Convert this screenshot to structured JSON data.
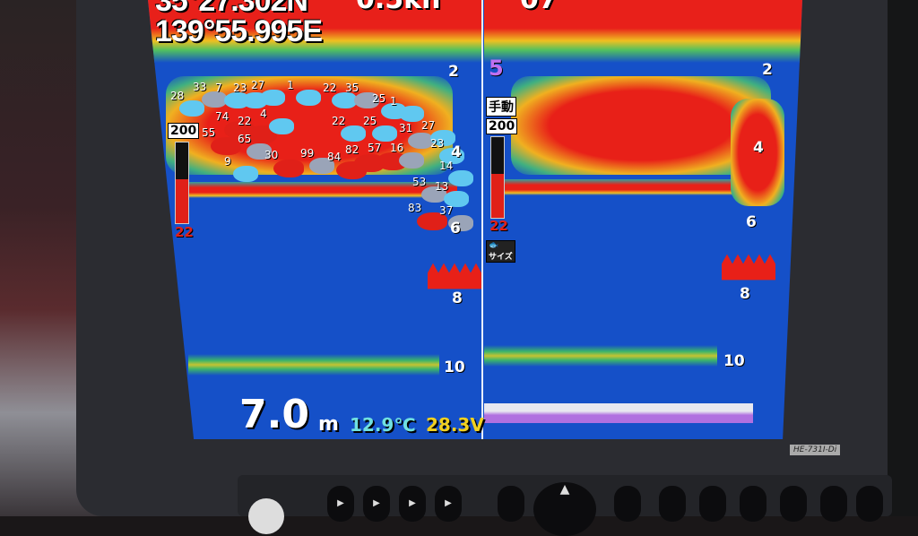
{
  "header": {
    "latitude": "35°27.302N",
    "longitude": "139°55.995E",
    "speed": "0.5kn",
    "right_partial": "07"
  },
  "left_panel": {
    "depth_marks": [
      "2",
      "4",
      "6",
      "8",
      "10"
    ],
    "gain_label": "200",
    "gain_value": "22",
    "gain_level_fraction": 0.55,
    "fish": [
      {
        "size": "28",
        "type": "cyan"
      },
      {
        "size": "33",
        "type": "grey"
      },
      {
        "size": "7",
        "type": "cyan"
      },
      {
        "size": "23",
        "type": "cyan"
      },
      {
        "size": "27",
        "type": "cyan"
      },
      {
        "size": "1",
        "type": "cyan"
      },
      {
        "size": "22",
        "type": "cyan"
      },
      {
        "size": "35",
        "type": "grey"
      },
      {
        "size": "25",
        "type": "cyan"
      },
      {
        "size": "1",
        "type": "cyan"
      },
      {
        "size": "74",
        "type": "red"
      },
      {
        "size": "22",
        "type": "red"
      },
      {
        "size": "4",
        "type": "cyan"
      },
      {
        "size": "22",
        "type": "cyan"
      },
      {
        "size": "25",
        "type": "cyan"
      },
      {
        "size": "31",
        "type": "grey"
      },
      {
        "size": "27",
        "type": "cyan"
      },
      {
        "size": "55",
        "type": "red"
      },
      {
        "size": "65",
        "type": "grey"
      },
      {
        "size": "9",
        "type": "cyan"
      },
      {
        "size": "30",
        "type": "red"
      },
      {
        "size": "99",
        "type": "grey"
      },
      {
        "size": "84",
        "type": "red"
      },
      {
        "size": "82",
        "type": "red"
      },
      {
        "size": "57",
        "type": "red"
      },
      {
        "size": "16",
        "type": "grey"
      },
      {
        "size": "23",
        "type": "cyan"
      },
      {
        "size": "14",
        "type": "cyan"
      },
      {
        "size": "53",
        "type": "grey"
      },
      {
        "size": "13",
        "type": "cyan"
      },
      {
        "size": "83",
        "type": "red"
      },
      {
        "size": "37",
        "type": "grey"
      }
    ]
  },
  "right_panel": {
    "range_number": "5",
    "mode_label": "手動",
    "gain_label": "200",
    "gain_value": "22",
    "gain_level_fraction": 0.55,
    "fish_size_label": "サイズ",
    "depth_marks": [
      "2",
      "4",
      "6",
      "8",
      "10"
    ]
  },
  "bottom": {
    "depth": "7.0",
    "depth_unit": "m",
    "water_temp": "12.9℃",
    "voltage": "28.3V"
  },
  "device": {
    "model": "HE-731I-Di"
  },
  "colors": {
    "water": "#1550c8",
    "strong_echo": "#e82018",
    "temp_text": "#70e0e0",
    "voltage_text": "#f0d020",
    "fish_cyan": "#60c8f0",
    "fish_grey": "#9aa4b8",
    "fish_red": "#e02018"
  }
}
